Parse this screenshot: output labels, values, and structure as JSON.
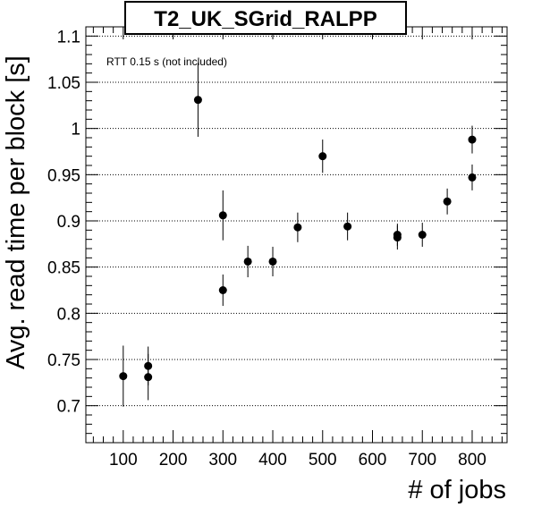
{
  "chart_data": {
    "type": "scatter",
    "title": "T2_UK_SGrid_RALPP",
    "xlabel": "# of jobs",
    "ylabel": "Avg. read time per block [s]",
    "annotation": "RTT 0.15 s (not included)",
    "xlim": [
      25,
      870
    ],
    "ylim": [
      0.66,
      1.11
    ],
    "x_ticks": [
      100,
      200,
      300,
      400,
      500,
      600,
      700,
      800
    ],
    "y_ticks": [
      0.7,
      0.75,
      0.8,
      0.85,
      0.9,
      0.95,
      1,
      1.05,
      1.1
    ],
    "y_tick_labels": [
      "0.7",
      "0.75",
      "0.8",
      "0.85",
      "0.9",
      "0.95",
      "1",
      "1.05",
      "1.1"
    ],
    "grid": "horizontal dotted",
    "marker_color": "#000000",
    "points": [
      {
        "x": 100,
        "y": 0.732,
        "err": 0.033
      },
      {
        "x": 150,
        "y": 0.743,
        "err": 0.021
      },
      {
        "x": 150,
        "y": 0.731,
        "err": 0.025
      },
      {
        "x": 250,
        "y": 1.031,
        "err": 0.04
      },
      {
        "x": 300,
        "y": 0.906,
        "err": 0.027
      },
      {
        "x": 300,
        "y": 0.825,
        "err": 0.017
      },
      {
        "x": 350,
        "y": 0.856,
        "err": 0.017
      },
      {
        "x": 400,
        "y": 0.856,
        "err": 0.016
      },
      {
        "x": 450,
        "y": 0.893,
        "err": 0.016
      },
      {
        "x": 500,
        "y": 0.97,
        "err": 0.018
      },
      {
        "x": 550,
        "y": 0.894,
        "err": 0.015
      },
      {
        "x": 650,
        "y": 0.885,
        "err": 0.012
      },
      {
        "x": 650,
        "y": 0.882,
        "err": 0.013
      },
      {
        "x": 700,
        "y": 0.885,
        "err": 0.013
      },
      {
        "x": 750,
        "y": 0.921,
        "err": 0.014
      },
      {
        "x": 800,
        "y": 0.988,
        "err": 0.015
      },
      {
        "x": 800,
        "y": 0.947,
        "err": 0.014
      }
    ]
  }
}
